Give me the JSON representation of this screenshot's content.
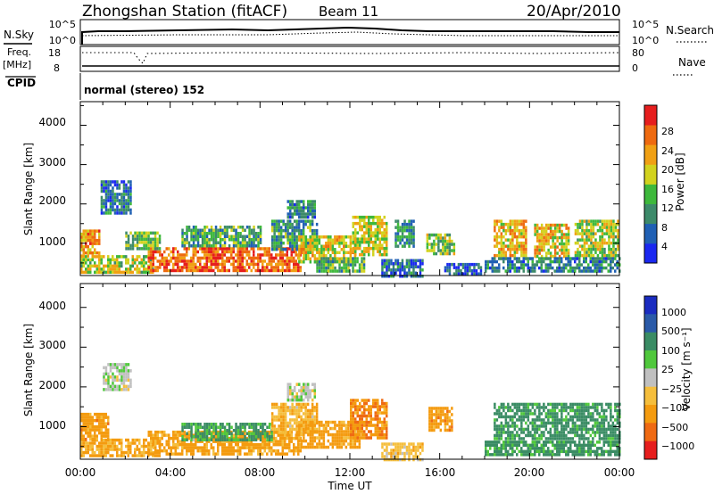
{
  "header": {
    "station": "Zhongshan Station (fitACF)",
    "beam": "Beam 11",
    "date": "20/Apr/2010"
  },
  "status_panels": {
    "nsky_label": "N.Sky",
    "nsky_ticks": [
      "10^5",
      "10^0"
    ],
    "nsearch_label": "N.Search",
    "nsearch_ticks": [
      "10^5",
      "10^0"
    ],
    "freq_label_line1": "Freq.",
    "freq_label_line2": "[MHz]",
    "freq_ticks": [
      "18",
      "8"
    ],
    "nave_label": "Nave",
    "nave_ticks": [
      "80",
      "0"
    ],
    "cpid_label": "CPID",
    "cpid_value": "normal (stereo) 152"
  },
  "chart_data": [
    {
      "type": "heatmap",
      "parameter": "Power",
      "ylabel": "Slant Range [km]",
      "ylim": [
        180,
        4600
      ],
      "yticks": [
        "1000",
        "2000",
        "3000",
        "4000"
      ],
      "yticks_values": [
        1000,
        2000,
        3000,
        4000
      ],
      "xlabel": "",
      "xlim_hours": [
        0,
        24
      ],
      "colorbar": {
        "label": "Power [dB]",
        "levels": [
          0,
          4,
          8,
          12,
          16,
          20,
          24,
          28,
          32
        ],
        "tick_labels": [
          "4",
          "8",
          "12",
          "16",
          "20",
          "24",
          "28"
        ],
        "colors": [
          "#1a28f0",
          "#2060b4",
          "#3d8a6a",
          "#3eb83c",
          "#d2d21e",
          "#f0a014",
          "#ee6a10",
          "#e61e1e"
        ]
      },
      "patches": [
        {
          "t": [
            0.0,
            3.2
          ],
          "r": [
            250,
            700
          ],
          "v": 17
        },
        {
          "t": [
            0.0,
            0.8
          ],
          "r": [
            700,
            1350
          ],
          "v": 23
        },
        {
          "t": [
            3.0,
            9.8
          ],
          "r": [
            300,
            900
          ],
          "v": 26
        },
        {
          "t": [
            2.0,
            3.5
          ],
          "r": [
            850,
            1300
          ],
          "v": 14
        },
        {
          "t": [
            4.5,
            8.0
          ],
          "r": [
            900,
            1450
          ],
          "v": 12
        },
        {
          "t": [
            8.5,
            10.5
          ],
          "r": [
            850,
            1600
          ],
          "v": 11
        },
        {
          "t": [
            9.7,
            12.2
          ],
          "r": [
            500,
            1200
          ],
          "v": 19
        },
        {
          "t": [
            10.5,
            12.6
          ],
          "r": [
            300,
            650
          ],
          "v": 13
        },
        {
          "t": [
            12.1,
            13.6
          ],
          "r": [
            700,
            1700
          ],
          "v": 18
        },
        {
          "t": [
            13.4,
            15.2
          ],
          "r": [
            200,
            600
          ],
          "v": 7
        },
        {
          "t": [
            15.4,
            16.6
          ],
          "r": [
            700,
            1250
          ],
          "v": 15
        },
        {
          "t": [
            16.2,
            17.8
          ],
          "r": [
            250,
            500
          ],
          "v": 6
        },
        {
          "t": [
            18.4,
            19.8
          ],
          "r": [
            700,
            1600
          ],
          "v": 21
        },
        {
          "t": [
            20.2,
            21.7
          ],
          "r": [
            700,
            1500
          ],
          "v": 20
        },
        {
          "t": [
            22.0,
            23.9
          ],
          "r": [
            700,
            1600
          ],
          "v": 17
        },
        {
          "t": [
            18.0,
            24.0
          ],
          "r": [
            280,
            650
          ],
          "v": 9
        },
        {
          "t": [
            0.9,
            2.2
          ],
          "r": [
            1800,
            2600
          ],
          "v": 8
        },
        {
          "t": [
            9.2,
            10.4
          ],
          "r": [
            1700,
            2100
          ],
          "v": 9
        },
        {
          "t": [
            14.0,
            14.8
          ],
          "r": [
            950,
            1600
          ],
          "v": 10
        }
      ]
    },
    {
      "type": "heatmap",
      "parameter": "Velocity",
      "ylabel": "Slant Range [km]",
      "ylim": [
        180,
        4600
      ],
      "yticks": [
        "1000",
        "2000",
        "3000",
        "4000"
      ],
      "yticks_values": [
        1000,
        2000,
        3000,
        4000
      ],
      "xlabel": "Time UT",
      "xticks": [
        "00:00",
        "04:00",
        "08:00",
        "12:00",
        "16:00",
        "20:00",
        "00:00"
      ],
      "xlim_hours": [
        0,
        24
      ],
      "colorbar": {
        "label": "Velocity [m s⁻¹]",
        "levels": [
          -1000,
          -500,
          -100,
          -25,
          25,
          100,
          500,
          1000
        ],
        "tick_labels": [
          "1000",
          "500",
          "100",
          "25",
          "−25",
          "−100",
          "−500",
          "−1000"
        ],
        "colors": [
          "#e61e1e",
          "#ef6a13",
          "#f49b0f",
          "#f5be3c",
          "#c0c0c0",
          "#50c83c",
          "#3a8c64",
          "#2a5aa8",
          "#1a2cc0"
        ]
      },
      "patches": [
        {
          "t": [
            0.0,
            3.5
          ],
          "r": [
            250,
            700
          ],
          "v": -150
        },
        {
          "t": [
            0.0,
            1.2
          ],
          "r": [
            700,
            1350
          ],
          "v": -300
        },
        {
          "t": [
            3.0,
            9.8
          ],
          "r": [
            350,
            900
          ],
          "v": -200
        },
        {
          "t": [
            4.5,
            8.5
          ],
          "r": [
            700,
            1100
          ],
          "v": 120
        },
        {
          "t": [
            8.5,
            10.5
          ],
          "r": [
            850,
            1600
          ],
          "v": -80
        },
        {
          "t": [
            9.7,
            12.4
          ],
          "r": [
            450,
            1150
          ],
          "v": -250
        },
        {
          "t": [
            12.0,
            13.6
          ],
          "r": [
            700,
            1700
          ],
          "v": -400
        },
        {
          "t": [
            13.4,
            15.2
          ],
          "r": [
            200,
            600
          ],
          "v": -60
        },
        {
          "t": [
            15.5,
            16.5
          ],
          "r": [
            900,
            1500
          ],
          "v": -300
        },
        {
          "t": [
            18.4,
            24.0
          ],
          "r": [
            700,
            1600
          ],
          "v": 200
        },
        {
          "t": [
            18.0,
            24.0
          ],
          "r": [
            280,
            650
          ],
          "v": 180
        },
        {
          "t": [
            9.2,
            10.4
          ],
          "r": [
            1700,
            2100
          ],
          "v": 5
        },
        {
          "t": [
            1.0,
            2.2
          ],
          "r": [
            1900,
            2600
          ],
          "v": 10
        }
      ]
    }
  ]
}
